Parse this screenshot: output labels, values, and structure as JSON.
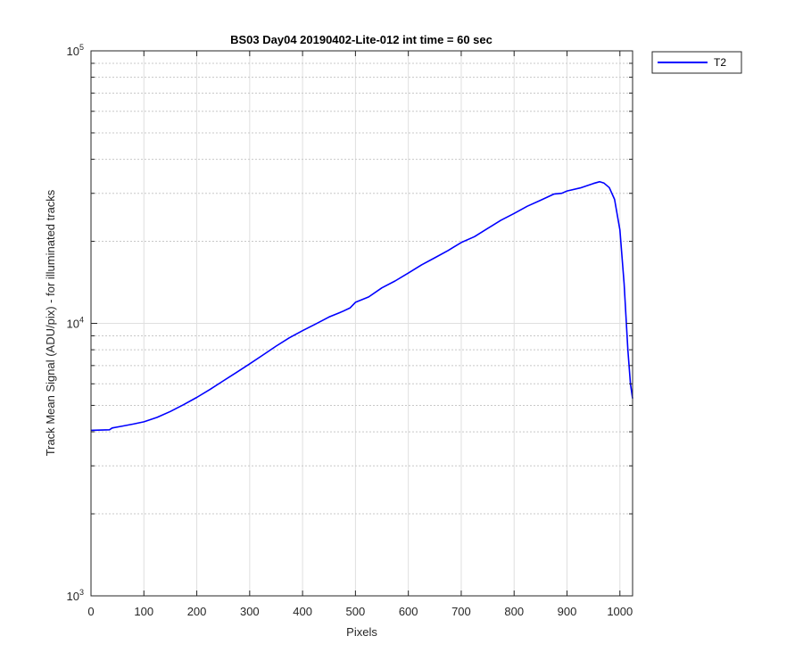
{
  "chart_data": {
    "type": "line",
    "title": "BS03 Day04 20190402-Lite-012 int time = 60 sec",
    "xlabel": "Pixels",
    "ylabel": "Track Mean Signal (ADU/pix) - for illuminated tracks",
    "xlim": [
      0,
      1024
    ],
    "ylim": [
      1000,
      100000
    ],
    "yscale": "log",
    "grid": true,
    "x_ticks": [
      0,
      100,
      200,
      300,
      400,
      500,
      600,
      700,
      800,
      900,
      1000
    ],
    "y_ticks": [
      {
        "base": "10",
        "exp": "3",
        "value": 1000
      },
      {
        "base": "10",
        "exp": "4",
        "value": 10000
      },
      {
        "base": "10",
        "exp": "5",
        "value": 100000
      }
    ],
    "legend": {
      "location": "outside-top-right",
      "entries": [
        "T2"
      ]
    },
    "series": [
      {
        "name": "T2",
        "color": "#0000ff",
        "x": [
          0,
          35,
          40,
          60,
          80,
          100,
          125,
          150,
          175,
          200,
          225,
          250,
          275,
          300,
          325,
          350,
          375,
          400,
          425,
          450,
          475,
          490,
          500,
          525,
          550,
          575,
          600,
          625,
          650,
          675,
          700,
          725,
          750,
          775,
          800,
          825,
          850,
          875,
          890,
          900,
          925,
          950,
          962,
          970,
          980,
          990,
          1000,
          1008,
          1015,
          1020,
          1024
        ],
        "y": [
          4050,
          4070,
          4130,
          4200,
          4270,
          4350,
          4520,
          4750,
          5030,
          5350,
          5720,
          6150,
          6600,
          7100,
          7650,
          8250,
          8850,
          9400,
          9950,
          10550,
          11050,
          11400,
          11950,
          12500,
          13500,
          14300,
          15300,
          16400,
          17400,
          18500,
          19800,
          20800,
          22300,
          23900,
          25300,
          26900,
          28300,
          29800,
          30000,
          30600,
          31400,
          32600,
          33100,
          32700,
          31500,
          28500,
          22000,
          14000,
          8000,
          6000,
          5300
        ]
      }
    ]
  }
}
